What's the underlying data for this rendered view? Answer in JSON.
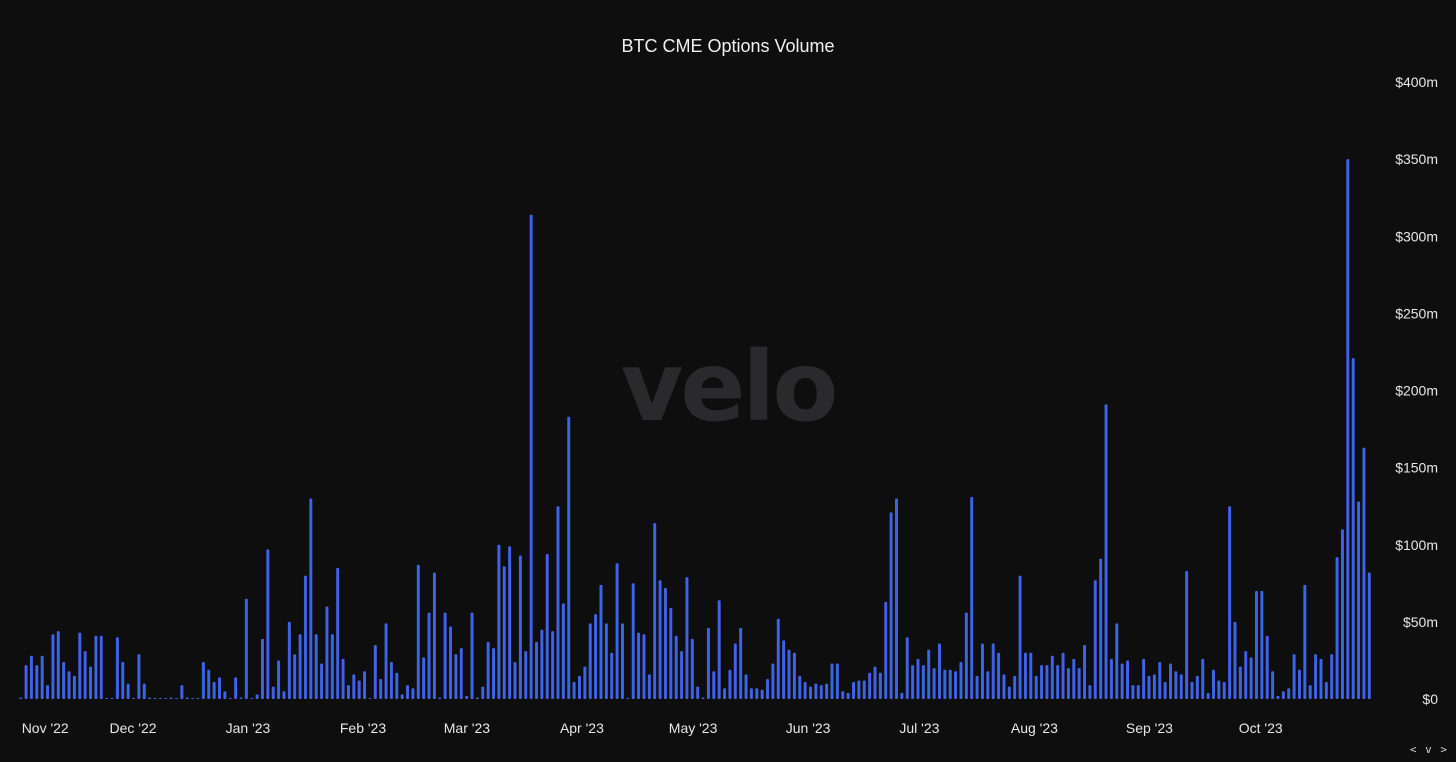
{
  "chart_data": {
    "type": "bar",
    "title": "BTC CME Options Volume",
    "watermark": "velo",
    "bar_color": "#3f63e6",
    "background": "#0e0e0f",
    "unit": "$m",
    "ylim": [
      0,
      400
    ],
    "yticks": [
      {
        "value": 0,
        "label": "$0"
      },
      {
        "value": 50,
        "label": "$50m"
      },
      {
        "value": 100,
        "label": "$100m"
      },
      {
        "value": 150,
        "label": "$150m"
      },
      {
        "value": 200,
        "label": "$200m"
      },
      {
        "value": 250,
        "label": "$250m"
      },
      {
        "value": 300,
        "label": "$300m"
      },
      {
        "value": 350,
        "label": "$350m"
      },
      {
        "value": 400,
        "label": "$400m"
      }
    ],
    "xticks": [
      {
        "date": "2022-11-01",
        "label": "Nov '22"
      },
      {
        "date": "2022-12-01",
        "label": "Dec '22"
      },
      {
        "date": "2023-01-01",
        "label": "Jan '23"
      },
      {
        "date": "2023-02-01",
        "label": "Feb '23"
      },
      {
        "date": "2023-03-01",
        "label": "Mar '23"
      },
      {
        "date": "2023-04-01",
        "label": "Apr '23"
      },
      {
        "date": "2023-05-01",
        "label": "May '23"
      },
      {
        "date": "2023-06-01",
        "label": "Jun '23"
      },
      {
        "date": "2023-07-01",
        "label": "Jul '23"
      },
      {
        "date": "2023-08-01",
        "label": "Aug '23"
      },
      {
        "date": "2023-09-01",
        "label": "Sep '23"
      },
      {
        "date": "2023-10-01",
        "label": "Oct '23"
      }
    ],
    "x_start": "2022-10-31",
    "series": [
      {
        "values": [
          1,
          22,
          28,
          22,
          28,
          9,
          42,
          44,
          24,
          18,
          15,
          43,
          31,
          21,
          41,
          41,
          0,
          0,
          40,
          24,
          10,
          0,
          29,
          10,
          1,
          0,
          0,
          0,
          1,
          0,
          9,
          1,
          0,
          0,
          24,
          19,
          11,
          14,
          5,
          0,
          14,
          1,
          65,
          0,
          3,
          39,
          97,
          8,
          25,
          5,
          50,
          29,
          42,
          80,
          130,
          42,
          23,
          60,
          42,
          85,
          26,
          9,
          16,
          12,
          18,
          0,
          35,
          13,
          49,
          24,
          17,
          3,
          9,
          7,
          87,
          27,
          56,
          82,
          1,
          56,
          47,
          29,
          33,
          2,
          56,
          1,
          8,
          37,
          33,
          100,
          86,
          99,
          24,
          93,
          31,
          314,
          37,
          45,
          94,
          44,
          125,
          62,
          183,
          11,
          15,
          21,
          49,
          55,
          74,
          49,
          30,
          88,
          49,
          0,
          75,
          43,
          42,
          16,
          114,
          77,
          72,
          59,
          41,
          31,
          79,
          39,
          8,
          1,
          46,
          18,
          64,
          7,
          19,
          36,
          46,
          16,
          7,
          7,
          6,
          13,
          23,
          52,
          38,
          32,
          30,
          15,
          11,
          8,
          10,
          9,
          10,
          23,
          23,
          5,
          4,
          11,
          12,
          12,
          17,
          21,
          17,
          63,
          121,
          130,
          4,
          40,
          22,
          26,
          22,
          32,
          20,
          36,
          19,
          19,
          18,
          24,
          56,
          131,
          15,
          36,
          18,
          36,
          30,
          16,
          8,
          15,
          80,
          30,
          30,
          15,
          22,
          22,
          28,
          22,
          30,
          20,
          26,
          20,
          35,
          9,
          77,
          91,
          191,
          26,
          49,
          23,
          25,
          9,
          9,
          26,
          15,
          16,
          24,
          11,
          23,
          18,
          16,
          83,
          11,
          15,
          26,
          4,
          19,
          12,
          11,
          125,
          50,
          21,
          31,
          27,
          70,
          70,
          41,
          18,
          2,
          5,
          7,
          29,
          19,
          74,
          9,
          29,
          26,
          11,
          29,
          92,
          110,
          350,
          221,
          128,
          163,
          82
        ]
      }
    ]
  },
  "ui": {
    "nav_glyphs": "< v >"
  }
}
